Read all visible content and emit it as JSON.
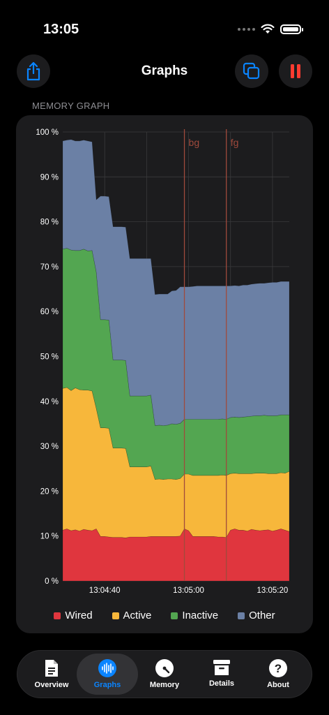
{
  "status_bar": {
    "time": "13:05"
  },
  "nav": {
    "title": "Graphs"
  },
  "section": {
    "label": "MEMORY GRAPH"
  },
  "colors": {
    "wired": "#e0363e",
    "active": "#f7b73b",
    "inactive": "#53a651",
    "other": "#6b80a5",
    "marker": "#a04a3c",
    "accent": "#0a84ff",
    "pause": "#ff3b30"
  },
  "chart_data": {
    "type": "area",
    "stacked": true,
    "x_tick_labels": [
      "13:04:40",
      "13:05:00",
      "13:05:20"
    ],
    "y_tick_labels": [
      "0 %",
      "10 %",
      "20 %",
      "30 %",
      "40 %",
      "50 %",
      "60 %",
      "70 %",
      "80 %",
      "90 %",
      "100 %"
    ],
    "ylim": [
      0,
      100
    ],
    "grid": true,
    "legend_position": "bottom",
    "markers": [
      {
        "label": "bg",
        "x_index": 29
      },
      {
        "label": "fg",
        "x_index": 39
      }
    ],
    "x": [
      0,
      1,
      2,
      3,
      4,
      5,
      6,
      7,
      8,
      9,
      10,
      11,
      12,
      13,
      14,
      15,
      16,
      17,
      18,
      19,
      20,
      21,
      22,
      23,
      24,
      25,
      26,
      27,
      28,
      29,
      30,
      31,
      32,
      33,
      34,
      35,
      36,
      37,
      38,
      39,
      40,
      41,
      42,
      43,
      44,
      45,
      46,
      47,
      48,
      49,
      50,
      51,
      52,
      53,
      54
    ],
    "series": [
      {
        "name": "Wired",
        "values": [
          11.3,
          11.6,
          11.2,
          11.4,
          11.1,
          11.5,
          11.3,
          11.2,
          11.6,
          9.9,
          9.9,
          9.8,
          9.7,
          9.7,
          9.7,
          9.6,
          9.8,
          9.8,
          9.8,
          9.8,
          9.8,
          9.9,
          9.9,
          9.9,
          9.9,
          9.9,
          9.9,
          9.9,
          10.0,
          11.6,
          11.2,
          9.9,
          9.9,
          9.9,
          9.9,
          9.9,
          9.9,
          9.8,
          9.8,
          9.7,
          11.3,
          11.6,
          11.3,
          11.3,
          11.1,
          11.5,
          11.3,
          11.2,
          11.3,
          11.4,
          11.1,
          11.3,
          11.6,
          11.3,
          11.0
        ]
      },
      {
        "name": "Active",
        "values": [
          31.6,
          31.5,
          31.2,
          31.6,
          31.5,
          31.0,
          31.2,
          31.1,
          26.8,
          24.2,
          24.2,
          24.2,
          19.9,
          19.9,
          19.9,
          19.9,
          15.6,
          15.6,
          15.6,
          15.6,
          15.6,
          15.7,
          12.7,
          12.8,
          12.7,
          12.8,
          12.8,
          12.7,
          12.8,
          12.2,
          12.6,
          13.6,
          13.6,
          13.6,
          13.6,
          13.6,
          13.6,
          13.7,
          13.8,
          13.8,
          12.6,
          12.4,
          12.6,
          12.6,
          12.8,
          12.4,
          12.7,
          12.8,
          12.7,
          12.5,
          12.8,
          12.6,
          12.5,
          12.7,
          13.4
        ]
      },
      {
        "name": "Inactive",
        "values": [
          31.0,
          31.0,
          31.3,
          30.6,
          31.0,
          31.4,
          31.0,
          31.3,
          30.4,
          24.1,
          24.1,
          24.1,
          19.6,
          19.6,
          19.6,
          19.6,
          15.8,
          15.8,
          15.8,
          15.8,
          15.8,
          15.8,
          12.0,
          12.0,
          12.0,
          12.0,
          12.3,
          12.3,
          12.3,
          12.2,
          12.2,
          12.5,
          12.5,
          12.5,
          12.5,
          12.5,
          12.5,
          12.5,
          12.5,
          12.5,
          12.5,
          12.5,
          12.5,
          12.6,
          12.7,
          12.8,
          12.8,
          12.8,
          12.9,
          12.9,
          12.9,
          12.9,
          12.9,
          13.0,
          12.6
        ]
      },
      {
        "name": "Other",
        "values": [
          24.1,
          24.1,
          24.6,
          24.4,
          24.4,
          24.3,
          24.5,
          24.2,
          16.1,
          27.5,
          27.5,
          27.5,
          29.7,
          29.7,
          29.7,
          29.7,
          30.6,
          30.6,
          30.6,
          30.6,
          30.6,
          30.4,
          29.2,
          29.2,
          29.3,
          29.2,
          29.6,
          29.8,
          30.4,
          29.5,
          29.5,
          29.6,
          29.7,
          29.7,
          29.7,
          29.7,
          29.7,
          29.7,
          29.6,
          29.7,
          29.3,
          29.3,
          29.3,
          29.4,
          29.3,
          29.4,
          29.4,
          29.5,
          29.4,
          29.6,
          29.7,
          29.7,
          29.7,
          29.7,
          29.7
        ]
      }
    ]
  },
  "legend": [
    {
      "label": "Wired",
      "color": "#e0363e"
    },
    {
      "label": "Active",
      "color": "#f7b73b"
    },
    {
      "label": "Inactive",
      "color": "#53a651"
    },
    {
      "label": "Other",
      "color": "#6b80a5"
    }
  ],
  "tabs": [
    {
      "label": "Overview",
      "icon": "document-icon"
    },
    {
      "label": "Graphs",
      "icon": "waveform-icon",
      "active": true
    },
    {
      "label": "Memory",
      "icon": "gauge-icon"
    },
    {
      "label": "Details",
      "icon": "archivebox-icon"
    },
    {
      "label": "About",
      "icon": "question-icon"
    }
  ]
}
